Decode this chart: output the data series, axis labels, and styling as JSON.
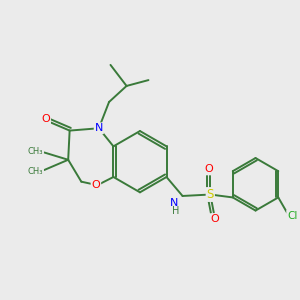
{
  "background_color": "#ebebeb",
  "bond_color": "#3a7a3a",
  "atom_colors": {
    "O": "#ff0000",
    "N": "#0000ff",
    "S": "#cccc00",
    "Cl": "#22aa22",
    "C": "#3a7a3a",
    "H": "#3a7a3a"
  },
  "figsize": [
    3.0,
    3.0
  ],
  "dpi": 100
}
